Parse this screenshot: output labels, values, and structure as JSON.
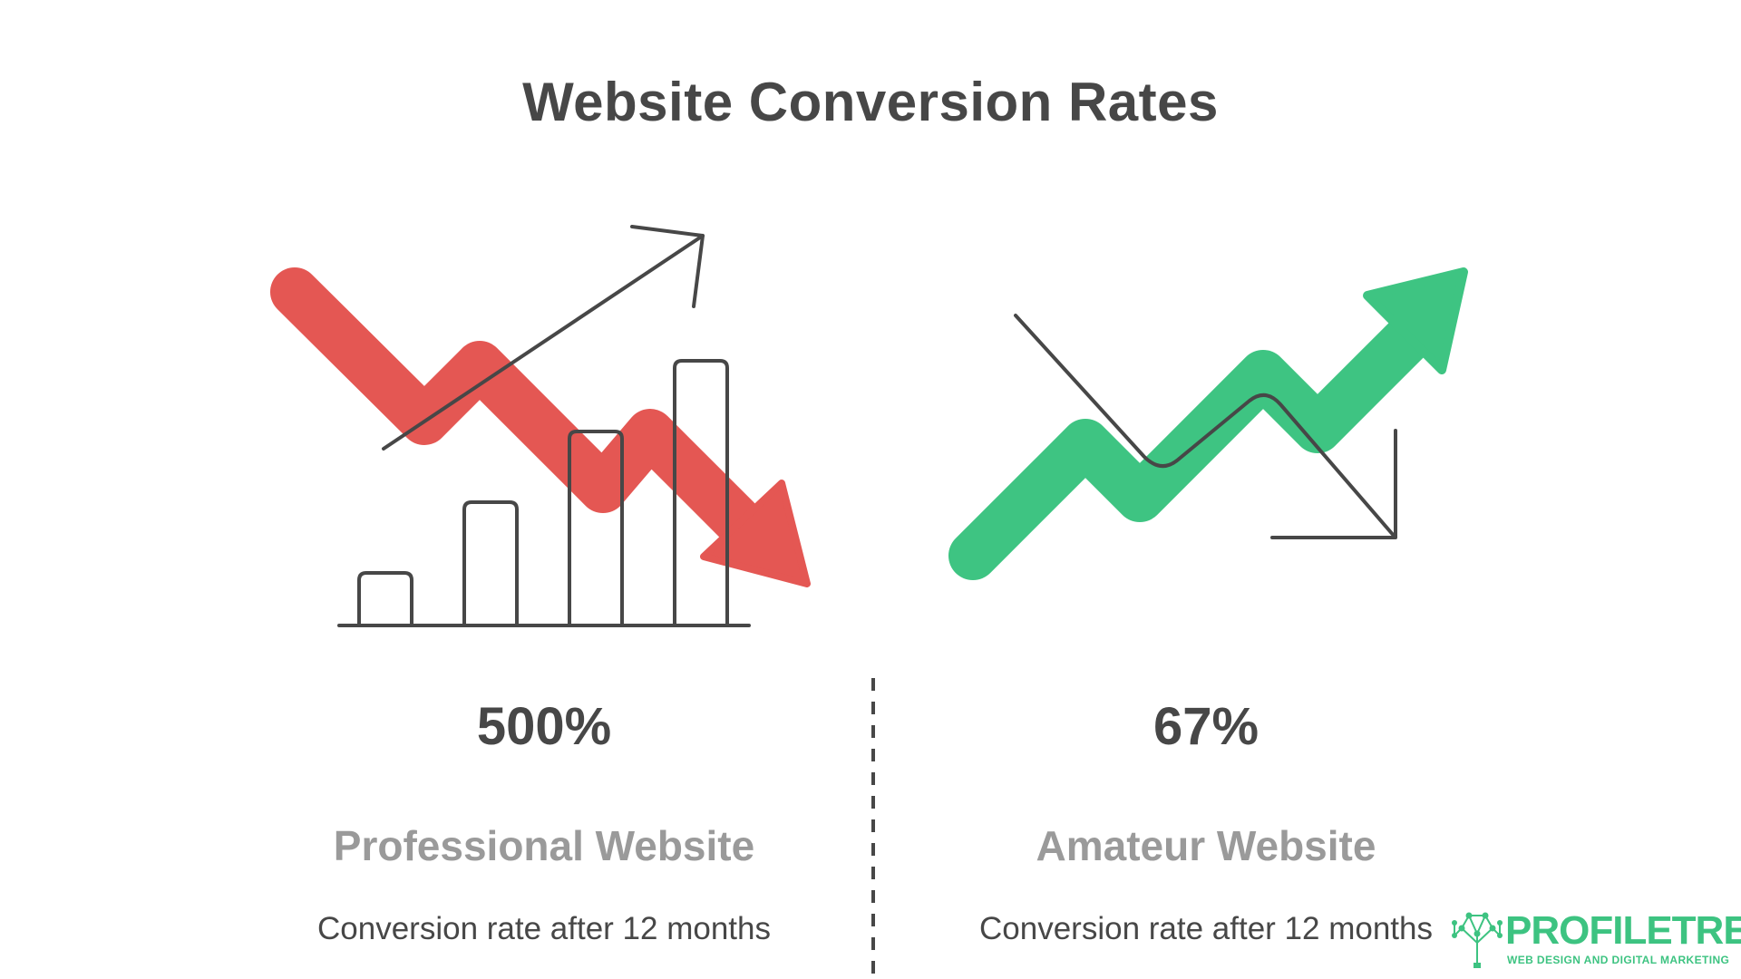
{
  "title": "Website Conversion Rates",
  "colors": {
    "down_arrow": "#e45753",
    "up_arrow": "#3ec482",
    "line_art": "#474747",
    "label": "#9a9a9a",
    "brand": "#3dc381"
  },
  "left": {
    "value": "500%",
    "label": "Professional Website",
    "description": "Conversion rate after 12 months",
    "icon": "bar-chart-with-down-arrow-icon"
  },
  "right": {
    "value": "67%",
    "label": "Amateur Website",
    "description": "Conversion rate after 12 months",
    "icon": "up-arrow-with-down-line-icon"
  },
  "divider": "dashed-vertical-divider",
  "logo": {
    "icon": "tree-network-icon",
    "word": "PROFILETREE",
    "tagline": "WEB DESIGN AND DIGITAL MARKETING"
  }
}
